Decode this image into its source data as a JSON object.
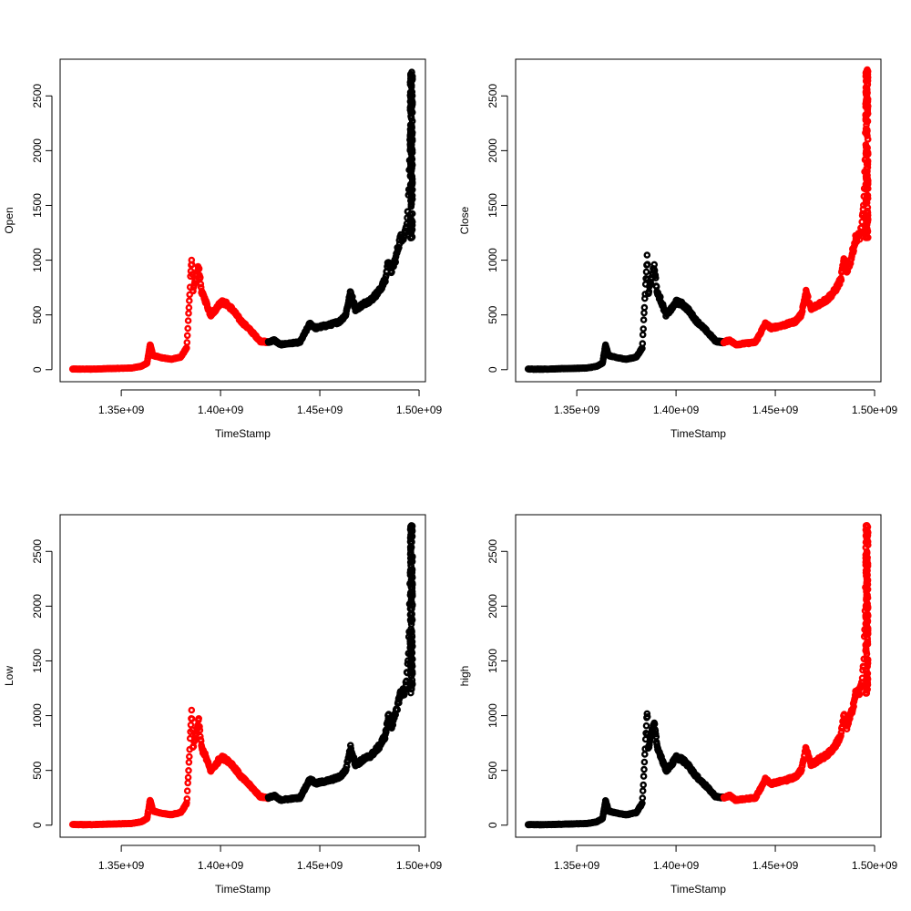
{
  "figure": {
    "layout": "2x2 grid",
    "background": "#ffffff",
    "colors": {
      "segment_red": "#ff0000",
      "segment_black": "#000000"
    }
  },
  "chart_data": [
    {
      "type": "scatter",
      "xlabel": "TimeStamp",
      "ylabel": "Open",
      "xlim": [
        1325000000.0,
        1500000000.0
      ],
      "ylim": [
        0,
        2750
      ],
      "x_ticks": [
        {
          "value": 1350000000.0,
          "label": "1.35e+09"
        },
        {
          "value": 1400000000.0,
          "label": "1.40e+09"
        },
        {
          "value": 1450000000.0,
          "label": "1.45e+09"
        },
        {
          "value": 1500000000.0,
          "label": "1.50e+09"
        }
      ],
      "y_ticks": [
        {
          "value": 0,
          "label": "0"
        },
        {
          "value": 500,
          "label": "500"
        },
        {
          "value": 1000,
          "label": "1000"
        },
        {
          "value": 1500,
          "label": "1500"
        },
        {
          "value": 2000,
          "label": "2000"
        },
        {
          "value": 2500,
          "label": "2500"
        }
      ],
      "grid": false,
      "marker": "open-circle",
      "segments": [
        {
          "color": "#ff0000",
          "x": [
            1325000000.0,
            1500000000.0
          ],
          "range": [
            1325000000.0,
            1424000000.0
          ]
        },
        {
          "color": "#000000",
          "range": [
            1424000000.0,
            1496500000.0
          ]
        }
      ]
    },
    {
      "type": "scatter",
      "xlabel": "TimeStamp",
      "ylabel": "Close",
      "xlim": [
        1325000000.0,
        1500000000.0
      ],
      "ylim": [
        0,
        2750
      ],
      "x_ticks": [
        {
          "value": 1350000000.0,
          "label": "1.35e+09"
        },
        {
          "value": 1400000000.0,
          "label": "1.40e+09"
        },
        {
          "value": 1450000000.0,
          "label": "1.45e+09"
        },
        {
          "value": 1500000000.0,
          "label": "1.50e+09"
        }
      ],
      "y_ticks": [
        {
          "value": 0,
          "label": "0"
        },
        {
          "value": 500,
          "label": "500"
        },
        {
          "value": 1000,
          "label": "1000"
        },
        {
          "value": 1500,
          "label": "1500"
        },
        {
          "value": 2000,
          "label": "2000"
        },
        {
          "value": 2500,
          "label": "2500"
        }
      ],
      "grid": false,
      "marker": "open-circle",
      "segments": [
        {
          "color": "#000000",
          "range": [
            1325000000.0,
            1424000000.0
          ]
        },
        {
          "color": "#ff0000",
          "range": [
            1424000000.0,
            1496500000.0
          ]
        }
      ]
    },
    {
      "type": "scatter",
      "xlabel": "TimeStamp",
      "ylabel": "Low",
      "xlim": [
        1325000000.0,
        1500000000.0
      ],
      "ylim": [
        0,
        2750
      ],
      "x_ticks": [
        {
          "value": 1350000000.0,
          "label": "1.35e+09"
        },
        {
          "value": 1400000000.0,
          "label": "1.40e+09"
        },
        {
          "value": 1450000000.0,
          "label": "1.45e+09"
        },
        {
          "value": 1500000000.0,
          "label": "1.50e+09"
        }
      ],
      "y_ticks": [
        {
          "value": 0,
          "label": "0"
        },
        {
          "value": 500,
          "label": "500"
        },
        {
          "value": 1000,
          "label": "1000"
        },
        {
          "value": 1500,
          "label": "1500"
        },
        {
          "value": 2000,
          "label": "2000"
        },
        {
          "value": 2500,
          "label": "2500"
        }
      ],
      "grid": false,
      "marker": "open-circle",
      "segments": [
        {
          "color": "#ff0000",
          "range": [
            1325000000.0,
            1424000000.0
          ]
        },
        {
          "color": "#000000",
          "range": [
            1424000000.0,
            1496500000.0
          ]
        }
      ]
    },
    {
      "type": "scatter",
      "xlabel": "TimeStamp",
      "ylabel": "high",
      "xlim": [
        1325000000.0,
        1500000000.0
      ],
      "ylim": [
        0,
        2750
      ],
      "x_ticks": [
        {
          "value": 1350000000.0,
          "label": "1.35e+09"
        },
        {
          "value": 1400000000.0,
          "label": "1.40e+09"
        },
        {
          "value": 1450000000.0,
          "label": "1.45e+09"
        },
        {
          "value": 1500000000.0,
          "label": "1.50e+09"
        }
      ],
      "y_ticks": [
        {
          "value": 0,
          "label": "0"
        },
        {
          "value": 500,
          "label": "500"
        },
        {
          "value": 1000,
          "label": "1000"
        },
        {
          "value": 1500,
          "label": "1500"
        },
        {
          "value": 2000,
          "label": "2000"
        },
        {
          "value": 2500,
          "label": "2500"
        }
      ],
      "grid": false,
      "marker": "open-circle",
      "segments": [
        {
          "color": "#000000",
          "range": [
            1325000000.0,
            1424000000.0
          ]
        },
        {
          "color": "#ff0000",
          "range": [
            1424000000.0,
            1496500000.0
          ]
        }
      ]
    }
  ],
  "series_profile": {
    "x": [
      1325500000.0,
      1335000000.0,
      1345000000.0,
      1355000000.0,
      1360000000.0,
      1363000000.0,
      1364500000.0,
      1366000000.0,
      1370000000.0,
      1375000000.0,
      1380000000.0,
      1383000000.0,
      1385500000.0,
      1386000000.0,
      1387500000.0,
      1389000000.0,
      1390500000.0,
      1392000000.0,
      1395000000.0,
      1398000000.0,
      1400000000.0,
      1403000000.0,
      1406000000.0,
      1410000000.0,
      1415000000.0,
      1420000000.0,
      1424000000.0,
      1427000000.0,
      1430000000.0,
      1435000000.0,
      1440000000.0,
      1445000000.0,
      1448000000.0,
      1450000000.0,
      1455000000.0,
      1460000000.0,
      1463000000.0,
      1465500000.0,
      1468000000.0,
      1472000000.0,
      1476000000.0,
      1480000000.0,
      1483000000.0,
      1484500000.0,
      1486000000.0,
      1488000000.0,
      1490500000.0,
      1492500000.0,
      1493500000.0,
      1494500000.0,
      1495000000.0,
      1495500000.0,
      1496000000.0,
      1496500000.0
    ],
    "y": [
      5,
      5,
      10,
      15,
      30,
      60,
      230,
      130,
      110,
      95,
      115,
      200,
      1060,
      700,
      820,
      950,
      700,
      650,
      500,
      560,
      620,
      600,
      550,
      450,
      360,
      260,
      250,
      270,
      230,
      240,
      250,
      420,
      380,
      390,
      410,
      440,
      500,
      710,
      550,
      600,
      640,
      720,
      820,
      1000,
      900,
      1000,
      1200,
      1220,
      1300,
      1500,
      1800,
      2300,
      2700,
      2600
    ]
  }
}
